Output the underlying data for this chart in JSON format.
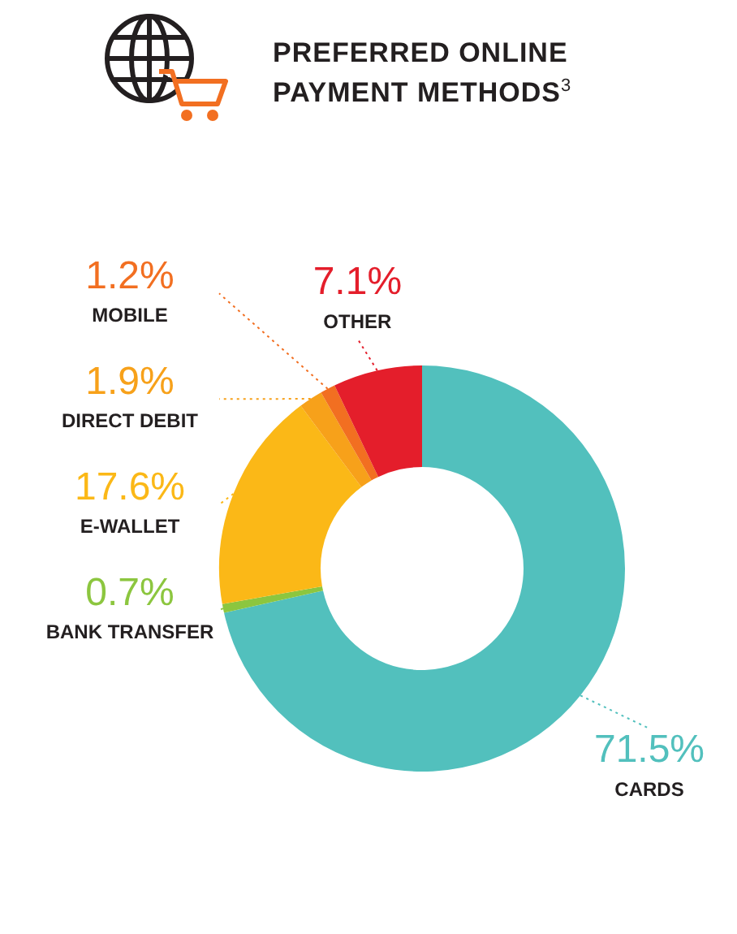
{
  "chart_data": {
    "type": "donut",
    "title": "PREFERRED ONLINE PAYMENT METHODS$^{3}$",
    "categories": [
      "CARDS",
      "BANK TRANSFER",
      "E-WALLET",
      "DIRECT DEBIT",
      "MOBILE",
      "OTHER"
    ],
    "values": [
      71.5,
      0.7,
      17.6,
      1.9,
      1.2,
      7.1
    ],
    "value_labels": [
      "71.5%",
      "0.7%",
      "17.6%",
      "1.9%",
      "1.2%",
      "7.1%"
    ],
    "colors": [
      "#52c0bd",
      "#8cc63f",
      "#fbb817",
      "#f7a11a",
      "#f26f21",
      "#e41e2b"
    ],
    "legend": false
  }
}
